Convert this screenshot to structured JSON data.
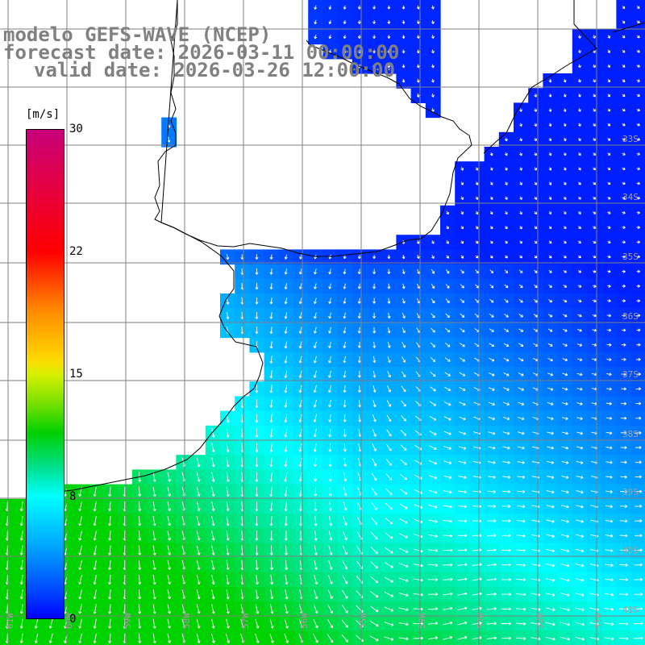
{
  "title": {
    "line1": "modelo GEFS-WAVE (NCEP)",
    "line2": "forecast date: 2026-03-11 00:00:00",
    "line3": "valid date: 2026-03-26 12:00:00"
  },
  "colorbar": {
    "unit": "[m/s]",
    "ticks": [
      {
        "label": "30",
        "value": 30
      },
      {
        "label": "22",
        "value": 22
      },
      {
        "label": "15",
        "value": 15
      },
      {
        "label": "8",
        "value": 8
      },
      {
        "label": "0",
        "value": 0
      }
    ],
    "colors": [
      "#0000ff",
      "#0040ff",
      "#00a8ff",
      "#00ffff",
      "#00e08c",
      "#00d000",
      "#78e000",
      "#ffd800",
      "#ff8a00",
      "#ff0000",
      "#c8007a"
    ]
  },
  "map": {
    "latitude_labels": [
      "33S",
      "34S",
      "35S",
      "36S",
      "37S",
      "38S",
      "39S",
      "40S",
      "41S"
    ],
    "longitude_labels": [
      "61W",
      "60W",
      "59W",
      "58W",
      "57W",
      "56W",
      "55W",
      "54W",
      "53W",
      "52W",
      "51W"
    ],
    "colors": {
      "land": "#ffffff",
      "grid": "#808080",
      "coastline": "#000000",
      "arrows": "#ffffff",
      "title": "#808080"
    }
  }
}
